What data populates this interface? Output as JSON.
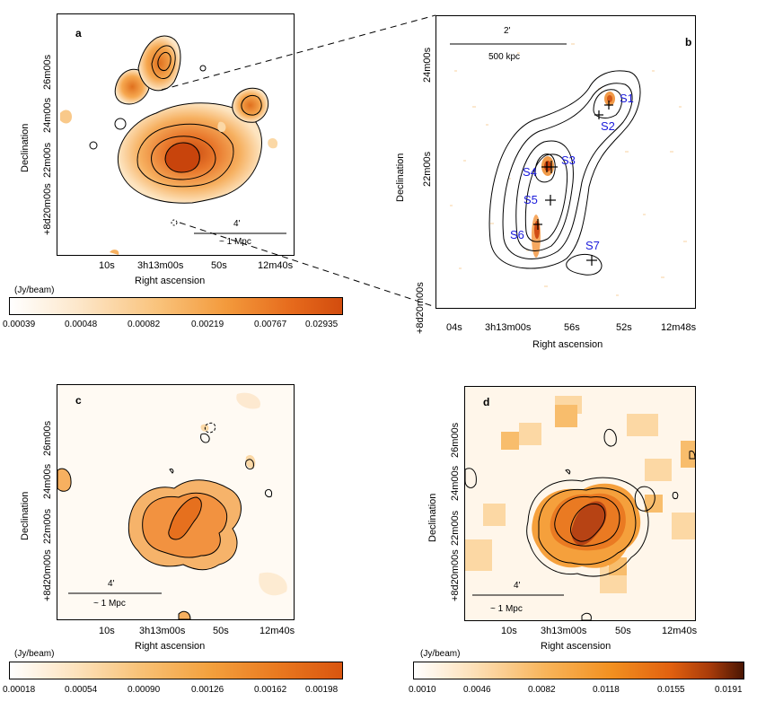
{
  "chart_data": [
    {
      "type": "heatmap",
      "panel": "a",
      "xlabel": "Right ascension",
      "ylabel": "Declination",
      "x_ticks": [
        "10s",
        "3h13m00s",
        "50s",
        "12m40s"
      ],
      "y_ticks": [
        "+8d20m00s",
        "22m00s",
        "24m00s",
        "26m00s"
      ],
      "scale_bar": {
        "angle": "4'",
        "distance": "~ 1 Mpc"
      },
      "colorbar": {
        "unit": "(Jy/beam)",
        "ticks": [
          "0.00039",
          "0.00048",
          "0.00082",
          "0.00219",
          "0.00767",
          "0.02935"
        ],
        "colormap": "white-orange-red"
      }
    },
    {
      "type": "heatmap",
      "panel": "b",
      "xlabel": "Right ascension",
      "ylabel": "Declination",
      "x_ticks": [
        "04s",
        "3h13m00s",
        "56s",
        "52s",
        "12m48s"
      ],
      "y_ticks": [
        "+8d20m00s",
        "22m00s",
        "24m00s"
      ],
      "scale_bar": {
        "angle": "2'",
        "distance": "500 kpc"
      },
      "sources": [
        "S1",
        "S2",
        "S3",
        "S4",
        "S5",
        "S6",
        "S7"
      ]
    },
    {
      "type": "heatmap",
      "panel": "c",
      "xlabel": "Right ascension",
      "ylabel": "Declination",
      "x_ticks": [
        "10s",
        "3h13m00s",
        "50s",
        "12m40s"
      ],
      "y_ticks": [
        "+8d20m00s",
        "22m00s",
        "24m00s",
        "26m00s"
      ],
      "scale_bar": {
        "angle": "4'",
        "distance": "~ 1 Mpc"
      },
      "colorbar": {
        "unit": "(Jy/beam)",
        "ticks": [
          "0.00018",
          "0.00054",
          "0.00090",
          "0.00126",
          "0.00162",
          "0.00198"
        ],
        "colormap": "white-orange-red"
      }
    },
    {
      "type": "heatmap",
      "panel": "d",
      "xlabel": "Right ascension",
      "ylabel": "Declination",
      "x_ticks": [
        "10s",
        "3h13m00s",
        "50s",
        "12m40s"
      ],
      "y_ticks": [
        "+8d20m00s",
        "22m00s",
        "24m00s",
        "26m00s"
      ],
      "scale_bar": {
        "angle": "4'",
        "distance": "~ 1 Mpc"
      },
      "colorbar": {
        "unit": "(Jy/beam)",
        "ticks": [
          "0.0010",
          "0.0046",
          "0.0082",
          "0.0118",
          "0.0155",
          "0.0191"
        ],
        "colormap": "white-orange-brown"
      }
    }
  ],
  "panels": {
    "a": {
      "label": "a"
    },
    "b": {
      "label": "b"
    },
    "c": {
      "label": "c"
    },
    "d": {
      "label": "d"
    }
  },
  "colors": {
    "low": "#ffffff",
    "mid": "#f5a02a",
    "high": "#d94a0e",
    "dark": "#5a1a05",
    "source_label": "#1a1adb"
  }
}
